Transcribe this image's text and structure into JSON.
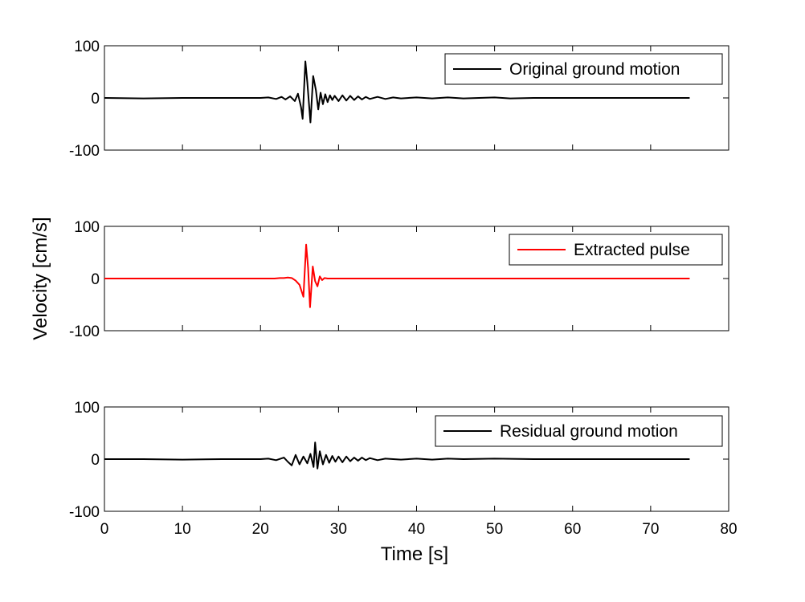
{
  "chart_data": {
    "type": "line",
    "figure": {
      "shared_ylabel": "Velocity [cm/s]",
      "shared_xlabel": "Time [s]",
      "x_ticks": [
        0,
        10,
        20,
        30,
        40,
        50,
        60,
        70,
        80
      ],
      "xlim": [
        0,
        80
      ]
    },
    "panels": [
      {
        "id": "original",
        "legend": "Original ground motion",
        "legend_position": "top-right",
        "color": "#000000",
        "ylim": [
          -100,
          100
        ],
        "y_ticks": [
          -100,
          0,
          100
        ],
        "series": [
          {
            "name": "Original ground motion",
            "x": [
              0,
              5,
              10,
              15,
              20,
              21,
              22,
              22.7,
              23.2,
              23.8,
              24.4,
              24.8,
              25.2,
              25.4,
              25.75,
              26.0,
              26.4,
              26.75,
              27.1,
              27.4,
              27.7,
              28.0,
              28.3,
              28.6,
              28.9,
              29.2,
              29.5,
              30.0,
              30.5,
              31.0,
              31.5,
              32.0,
              32.5,
              33.0,
              33.5,
              34.0,
              35.0,
              36.0,
              37.0,
              38.0,
              40.0,
              42.0,
              44.0,
              46.0,
              48.0,
              50.0,
              52.0,
              55.0,
              60.0,
              65.0,
              70.0,
              75.0
            ],
            "y": [
              0,
              -1,
              0,
              0,
              0,
              1,
              -2,
              2,
              -3,
              3,
              -6,
              8,
              -18,
              -40,
              70,
              30,
              -47,
              42,
              15,
              -22,
              10,
              -12,
              7,
              -8,
              5,
              -4,
              4,
              -6,
              5,
              -5,
              4,
              -4,
              3,
              -3,
              2,
              -2,
              2,
              -2,
              1,
              -1,
              1,
              -1,
              1,
              -1,
              0,
              1,
              -1,
              0,
              0,
              0,
              0,
              0
            ]
          }
        ]
      },
      {
        "id": "pulse",
        "legend": "Extracted pulse",
        "legend_position": "top-right",
        "color": "#ff0000",
        "ylim": [
          -100,
          100
        ],
        "y_ticks": [
          -100,
          0,
          100
        ],
        "series": [
          {
            "name": "Extracted pulse",
            "x": [
              0,
              21.8,
              22.5,
              23.0,
              23.5,
              24.0,
              24.5,
              25.0,
              25.5,
              25.85,
              26.1,
              26.35,
              26.7,
              27.0,
              27.3,
              27.6,
              27.9,
              28.2,
              28.6,
              29.0,
              75.0
            ],
            "y": [
              0,
              0,
              1,
              1,
              2,
              1,
              -4,
              -12,
              -35,
              65,
              20,
              -55,
              23,
              -5,
              -15,
              4,
              -3,
              1,
              0,
              0,
              0
            ]
          }
        ]
      },
      {
        "id": "residual",
        "legend": "Residual ground motion",
        "legend_position": "top-right",
        "color": "#000000",
        "ylim": [
          -100,
          100
        ],
        "y_ticks": [
          -100,
          0,
          100
        ],
        "series": [
          {
            "name": "Residual ground motion",
            "x": [
              0,
              5,
              10,
              15,
              20,
              21,
              22,
              23.0,
              23.5,
              24.0,
              24.5,
              25.0,
              25.5,
              26.0,
              26.4,
              26.8,
              27.0,
              27.3,
              27.6,
              28.0,
              28.4,
              28.8,
              29.2,
              29.6,
              30.0,
              30.5,
              31.0,
              31.5,
              32.0,
              32.5,
              33.0,
              33.5,
              34.0,
              35.0,
              36.0,
              38.0,
              40.0,
              42.0,
              44.0,
              46.0,
              50.0,
              55.0,
              60.0,
              65.0,
              70.0,
              75.0
            ],
            "y": [
              0,
              0,
              -1,
              0,
              0,
              1,
              -2,
              3,
              -5,
              -12,
              8,
              -10,
              5,
              -8,
              10,
              -15,
              32,
              -18,
              15,
              -10,
              8,
              -7,
              6,
              -5,
              5,
              -6,
              5,
              -4,
              3,
              -3,
              3,
              -2,
              2,
              -2,
              1,
              -1,
              1,
              -1,
              1,
              0,
              1,
              0,
              0,
              0,
              0,
              0
            ]
          }
        ]
      }
    ]
  }
}
